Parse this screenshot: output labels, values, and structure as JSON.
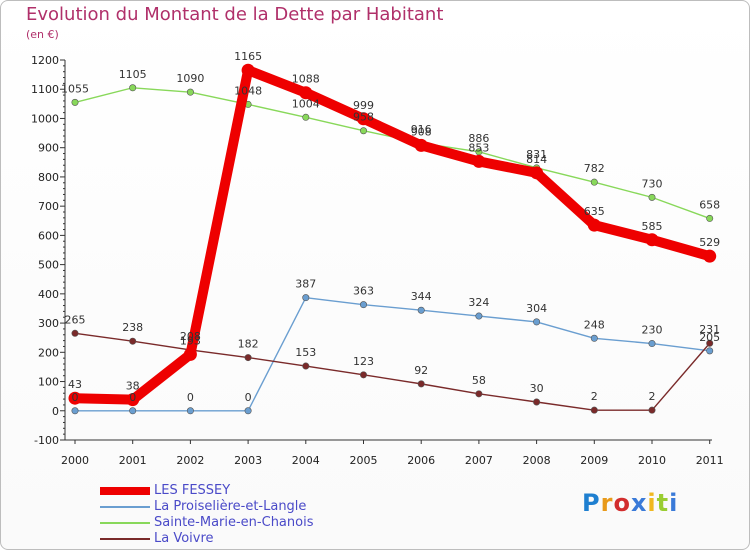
{
  "logo_text": "Proxiti",
  "chart_data": {
    "type": "line",
    "title": "Evolution du Montant de la Dette par Habitant",
    "ylabel": "(en €)",
    "xlabel": "",
    "categories": [
      "2000",
      "2001",
      "2002",
      "2003",
      "2004",
      "2005",
      "2006",
      "2007",
      "2008",
      "2009",
      "2010",
      "2011"
    ],
    "ylim": [
      -100,
      1200
    ],
    "yticks": [
      -100,
      0,
      100,
      200,
      300,
      400,
      500,
      600,
      700,
      800,
      900,
      1000,
      1100,
      1200
    ],
    "grid": false,
    "legend_position": "bottom-left",
    "series": [
      {
        "name": "LES FESSEY",
        "color": "#ee0000",
        "values": [
          43,
          38,
          193,
          1165,
          1088,
          999,
          908,
          853,
          814,
          635,
          585,
          529
        ]
      },
      {
        "name": "La Proiselière-et-Langle",
        "color": "#6a9ed0",
        "values": [
          0,
          0,
          0,
          0,
          387,
          363,
          344,
          324,
          304,
          248,
          230,
          205
        ]
      },
      {
        "name": "Sainte-Marie-en-Chanois",
        "color": "#88d85a",
        "values": [
          1055,
          1105,
          1090,
          1048,
          1004,
          958,
          916,
          886,
          831,
          782,
          730,
          658
        ]
      },
      {
        "name": "La Voivre",
        "color": "#7a2a2a",
        "values": [
          265,
          238,
          208,
          182,
          153,
          123,
          92,
          58,
          30,
          2,
          2,
          231
        ]
      }
    ]
  }
}
